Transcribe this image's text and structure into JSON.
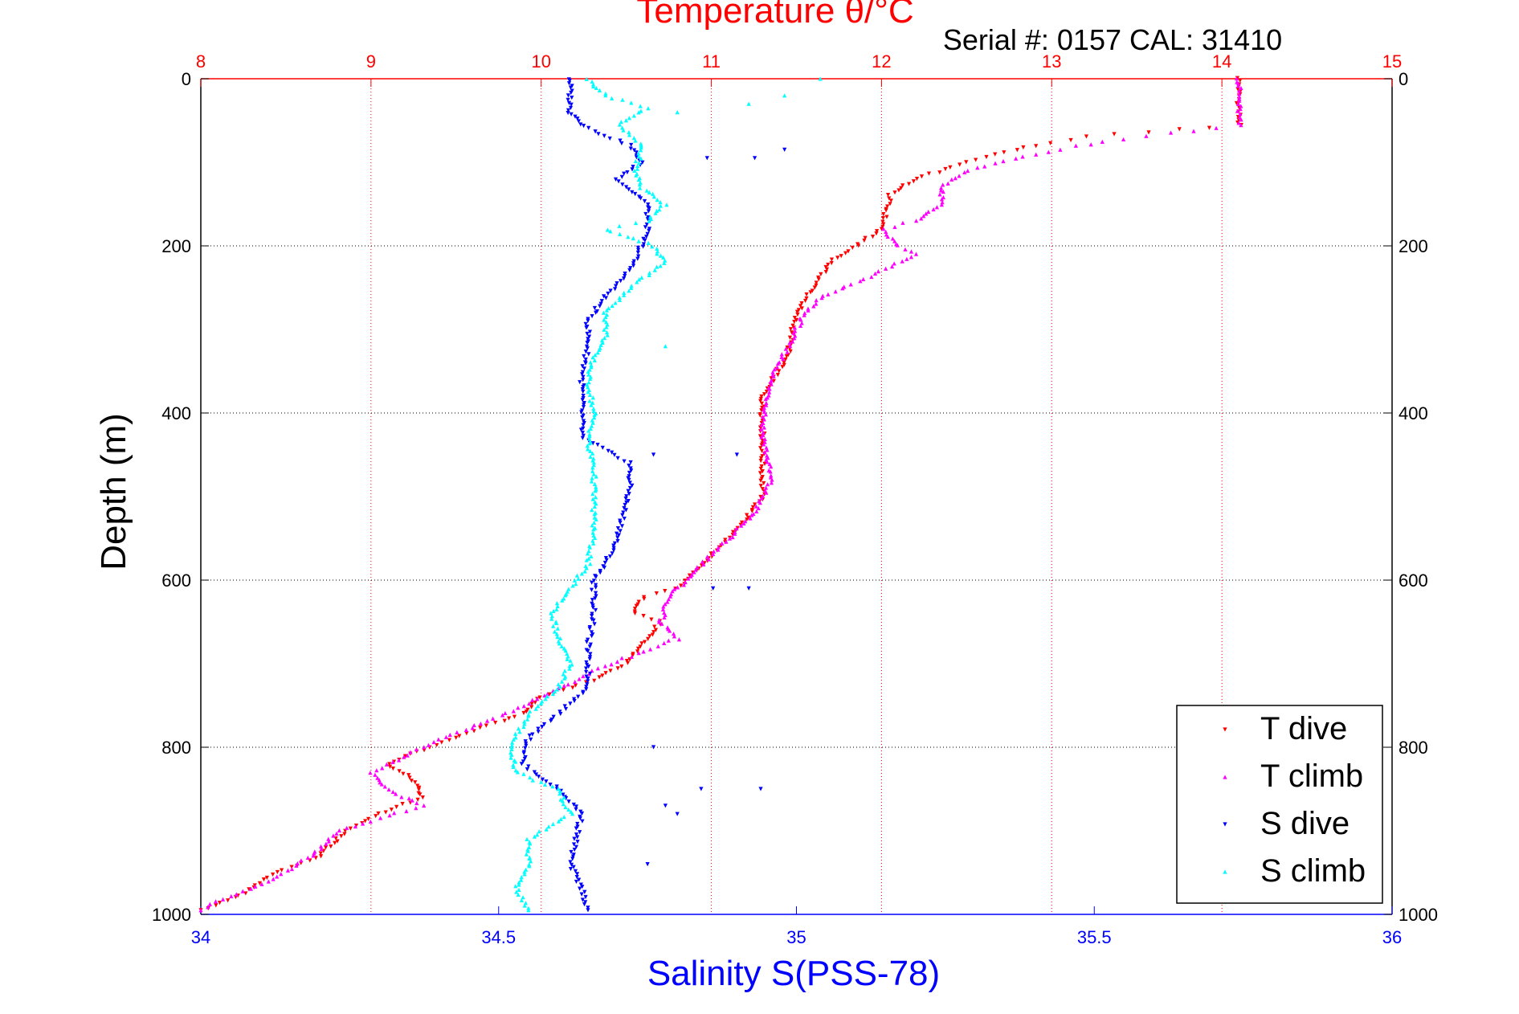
{
  "chart_data": {
    "type": "scatter",
    "title": "Temperature θ/°C",
    "subtitle": "Serial #: 0157  CAL: 31410",
    "xlabel": "Salinity S(PSS-78)",
    "ylabel": "Depth (m)",
    "x_top": {
      "range": [
        8,
        15
      ],
      "ticks": [
        "8",
        "9",
        "10",
        "11",
        "12",
        "13",
        "14",
        "15"
      ],
      "color": "#ff0000",
      "grid": true
    },
    "x_bottom": {
      "range": [
        34,
        36
      ],
      "ticks": [
        "34",
        "34.5",
        "35",
        "35.5",
        "36"
      ],
      "color": "#0000ff",
      "grid": false
    },
    "y": {
      "range": [
        0,
        1000
      ],
      "reversed": true,
      "ticks": [
        "0",
        "200",
        "400",
        "600",
        "800",
        "1000"
      ],
      "grid": true
    },
    "legend": {
      "position": "bottom-right",
      "entries": [
        "T dive",
        "T climb",
        "S dive",
        "S climb"
      ]
    },
    "series": [
      {
        "name": "T dive",
        "axis": "top",
        "color": "#ff0000",
        "marker": "triangle-down",
        "points": [
          [
            14.1,
            0
          ],
          [
            14.1,
            30
          ],
          [
            14.1,
            55
          ],
          [
            13.2,
            70
          ],
          [
            12.9,
            80
          ],
          [
            12.5,
            100
          ],
          [
            12.2,
            120
          ],
          [
            12.05,
            140
          ],
          [
            12.0,
            180
          ],
          [
            11.85,
            200
          ],
          [
            11.7,
            220
          ],
          [
            11.6,
            250
          ],
          [
            11.5,
            280
          ],
          [
            11.45,
            330
          ],
          [
            11.3,
            380
          ],
          [
            11.3,
            430
          ],
          [
            11.3,
            500
          ],
          [
            11.15,
            540
          ],
          [
            10.95,
            580
          ],
          [
            10.8,
            610
          ],
          [
            10.6,
            620
          ],
          [
            10.55,
            640
          ],
          [
            10.7,
            650
          ],
          [
            10.5,
            700
          ],
          [
            10.3,
            720
          ],
          [
            10.0,
            740
          ],
          [
            9.9,
            760
          ],
          [
            9.6,
            780
          ],
          [
            9.35,
            800
          ],
          [
            9.1,
            820
          ],
          [
            9.25,
            840
          ],
          [
            9.3,
            860
          ],
          [
            9.05,
            880
          ],
          [
            8.85,
            900
          ],
          [
            8.7,
            930
          ],
          [
            8.45,
            950
          ],
          [
            8.2,
            980
          ],
          [
            8.0,
            995
          ]
        ]
      },
      {
        "name": "T climb",
        "axis": "top",
        "color": "#ff00ff",
        "marker": "triangle-up",
        "points": [
          [
            14.1,
            0
          ],
          [
            14.1,
            30
          ],
          [
            14.1,
            55
          ],
          [
            13.7,
            65
          ],
          [
            13.3,
            75
          ],
          [
            12.9,
            90
          ],
          [
            12.5,
            110
          ],
          [
            12.35,
            130
          ],
          [
            12.35,
            150
          ],
          [
            12.2,
            170
          ],
          [
            12.0,
            180
          ],
          [
            12.1,
            200
          ],
          [
            12.2,
            210
          ],
          [
            11.9,
            240
          ],
          [
            11.65,
            260
          ],
          [
            11.55,
            280
          ],
          [
            11.45,
            320
          ],
          [
            11.35,
            360
          ],
          [
            11.3,
            420
          ],
          [
            11.35,
            480
          ],
          [
            11.25,
            520
          ],
          [
            11.05,
            560
          ],
          [
            10.9,
            590
          ],
          [
            10.75,
            620
          ],
          [
            10.7,
            650
          ],
          [
            10.8,
            670
          ],
          [
            10.4,
            700
          ],
          [
            10.1,
            730
          ],
          [
            9.9,
            750
          ],
          [
            9.55,
            780
          ],
          [
            9.3,
            800
          ],
          [
            9.0,
            830
          ],
          [
            9.1,
            850
          ],
          [
            9.3,
            870
          ],
          [
            8.8,
            900
          ],
          [
            8.65,
            930
          ],
          [
            8.4,
            960
          ],
          [
            8.1,
            985
          ],
          [
            8.0,
            995
          ]
        ]
      },
      {
        "name": "S dive",
        "axis": "bottom",
        "color": "#0000ff",
        "marker": "triangle-down",
        "points": [
          [
            34.62,
            0
          ],
          [
            34.62,
            20
          ],
          [
            34.62,
            40
          ],
          [
            34.65,
            60
          ],
          [
            34.72,
            80
          ],
          [
            34.74,
            100
          ],
          [
            34.7,
            120
          ],
          [
            34.75,
            150
          ],
          [
            34.75,
            180
          ],
          [
            34.74,
            200
          ],
          [
            34.72,
            230
          ],
          [
            34.68,
            260
          ],
          [
            34.65,
            290
          ],
          [
            34.65,
            320
          ],
          [
            34.64,
            360
          ],
          [
            34.64,
            400
          ],
          [
            34.64,
            430
          ],
          [
            34.72,
            460
          ],
          [
            34.72,
            490
          ],
          [
            34.71,
            520
          ],
          [
            34.7,
            550
          ],
          [
            34.68,
            580
          ],
          [
            34.66,
            600
          ],
          [
            34.66,
            640
          ],
          [
            34.65,
            680
          ],
          [
            34.65,
            730
          ],
          [
            34.6,
            760
          ],
          [
            34.55,
            790
          ],
          [
            34.54,
            820
          ],
          [
            34.6,
            850
          ],
          [
            34.64,
            880
          ],
          [
            34.63,
            910
          ],
          [
            34.62,
            940
          ],
          [
            34.64,
            970
          ],
          [
            34.65,
            995
          ]
        ]
      },
      {
        "name": "S climb",
        "axis": "bottom",
        "color": "#00ffff",
        "marker": "triangle-up",
        "points": [
          [
            34.65,
            0
          ],
          [
            34.68,
            20
          ],
          [
            34.75,
            35
          ],
          [
            34.7,
            55
          ],
          [
            34.74,
            80
          ],
          [
            34.73,
            110
          ],
          [
            34.74,
            130
          ],
          [
            34.78,
            150
          ],
          [
            34.75,
            170
          ],
          [
            34.68,
            180
          ],
          [
            34.76,
            200
          ],
          [
            34.78,
            220
          ],
          [
            34.72,
            250
          ],
          [
            34.68,
            280
          ],
          [
            34.68,
            310
          ],
          [
            34.66,
            330
          ],
          [
            34.65,
            360
          ],
          [
            34.66,
            400
          ],
          [
            34.65,
            440
          ],
          [
            34.66,
            460
          ],
          [
            34.66,
            500
          ],
          [
            34.66,
            540
          ],
          [
            34.65,
            580
          ],
          [
            34.62,
            610
          ],
          [
            34.59,
            640
          ],
          [
            34.6,
            670
          ],
          [
            34.62,
            700
          ],
          [
            34.6,
            730
          ],
          [
            34.55,
            760
          ],
          [
            34.52,
            800
          ],
          [
            34.53,
            830
          ],
          [
            34.6,
            850
          ],
          [
            34.62,
            880
          ],
          [
            34.55,
            910
          ],
          [
            34.55,
            940
          ],
          [
            34.53,
            970
          ],
          [
            34.55,
            995
          ]
        ]
      }
    ],
    "outliers": [
      {
        "series": "S dive",
        "points": [
          [
            34.98,
            85
          ],
          [
            34.93,
            95
          ],
          [
            34.85,
            95
          ],
          [
            34.76,
            450
          ],
          [
            34.9,
            450
          ],
          [
            34.86,
            610
          ],
          [
            34.92,
            610
          ],
          [
            34.76,
            800
          ],
          [
            34.84,
            850
          ],
          [
            34.94,
            850
          ],
          [
            34.78,
            870
          ],
          [
            34.8,
            880
          ],
          [
            34.75,
            940
          ]
        ]
      },
      {
        "series": "S climb",
        "points": [
          [
            34.92,
            30
          ],
          [
            34.98,
            20
          ],
          [
            35.04,
            0
          ],
          [
            34.8,
            40
          ],
          [
            34.78,
            320
          ]
        ]
      }
    ]
  }
}
